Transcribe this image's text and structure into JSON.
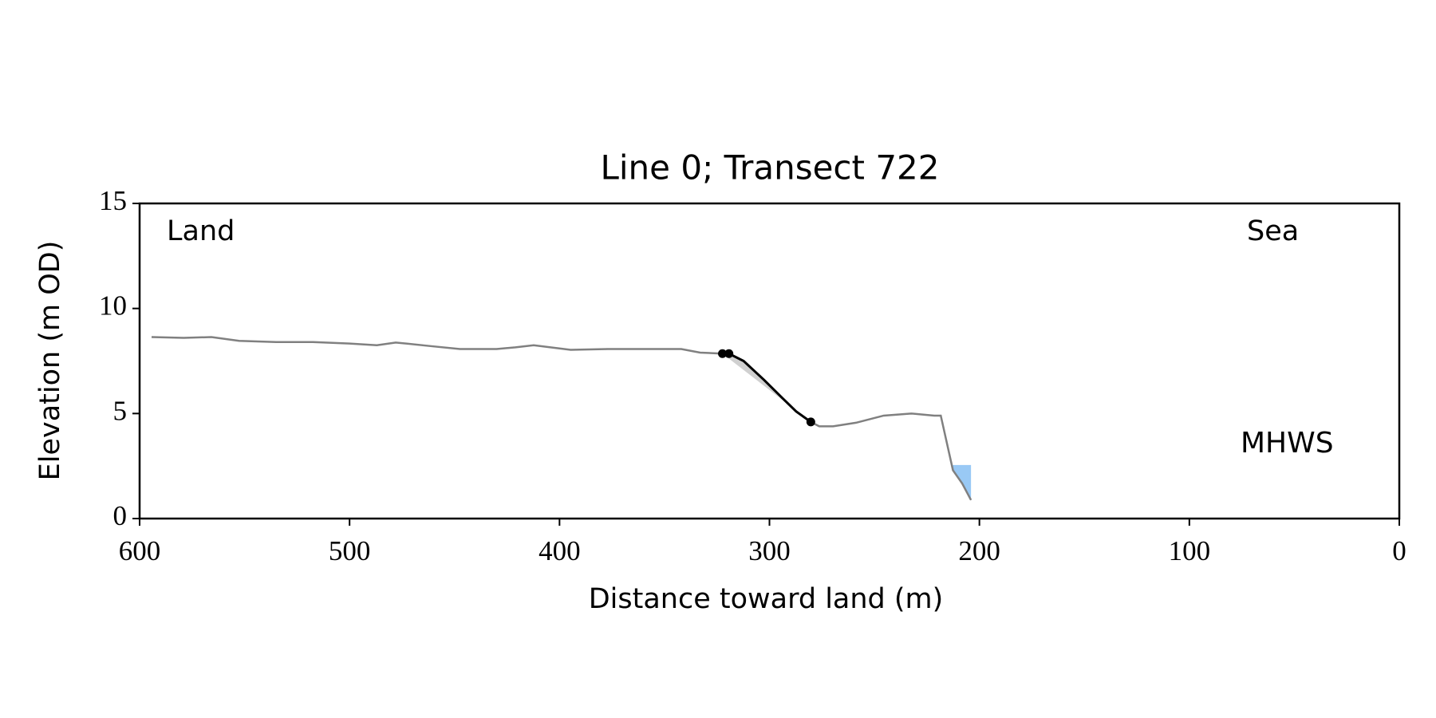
{
  "chart_data": {
    "type": "line",
    "title": "Line 0; Transect 722",
    "x_label": "Distance toward land (m)",
    "y_label": "Elevation (m OD)",
    "xlim": [
      600,
      0
    ],
    "xticks": [
      600,
      500,
      400,
      300,
      200,
      100,
      0
    ],
    "ylim": [
      0,
      15
    ],
    "yticks": [
      0,
      5,
      10,
      15
    ],
    "series": [
      {
        "color": "#808080",
        "x": [
          594.3,
          579,
          565.8,
          552.6,
          535,
          517.5,
          500,
          487,
          478,
          460.5,
          447.4,
          430,
          421,
          412.3,
          394.7,
          377,
          359.6,
          342,
          333,
          322.4,
          319.3,
          312.3,
          302.6,
          294,
          287.3,
          280.3,
          276.3,
          269.7,
          258.8,
          245.6,
          232.5,
          221.5,
          218.4,
          212.6,
          208.2,
          204
        ],
        "values": [
          8.64,
          8.6,
          8.64,
          8.46,
          8.4,
          8.4,
          8.33,
          8.25,
          8.38,
          8.2,
          8.07,
          8.07,
          8.15,
          8.25,
          8.03,
          8.07,
          8.07,
          8.07,
          7.9,
          7.85,
          7.85,
          7.5,
          6.6,
          5.75,
          5.1,
          4.6,
          4.39,
          4.39,
          4.56,
          4.9,
          5.0,
          4.9,
          4.9,
          2.3,
          1.67,
          0.88
        ]
      },
      {
        "color": "#000000",
        "x": [
          322.4,
          319.3,
          312.3,
          302.6,
          294,
          287.3,
          280.3
        ],
        "values": [
          7.85,
          7.85,
          7.5,
          6.6,
          5.75,
          5.1,
          4.6
        ]
      }
    ],
    "mhws": {
      "label": "MHWS",
      "elevation": 2.55,
      "color": "#99c9f5",
      "label_color": "#6699cc"
    },
    "annotations": [
      "Land",
      "Sea"
    ]
  }
}
